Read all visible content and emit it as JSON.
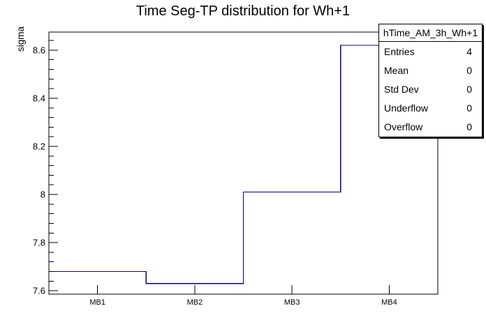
{
  "chart_data": {
    "type": "step-histogram",
    "title": "Time Seg-TP distribution for Wh+1",
    "ylabel": "sigma",
    "xlabel": "",
    "categories": [
      "MB1",
      "MB2",
      "MB3",
      "MB4"
    ],
    "values": [
      7.68,
      7.63,
      8.01,
      8.62
    ],
    "ylim": [
      7.586,
      8.675
    ],
    "y_major_ticks": [
      7.6,
      7.8,
      8.0,
      8.2,
      8.4,
      8.6
    ],
    "y_tick_labels": [
      "7.6",
      "7.8",
      "8",
      "8.2",
      "8.4",
      "8.6"
    ],
    "y_minor_step": 0.04,
    "line_color": "#00008c",
    "frame_color": "#000000",
    "background_color": "#ffffff",
    "grid": false,
    "legend_position": "top-right"
  },
  "stats_box": {
    "header": "hTime_AM_3h_Wh+1",
    "rows": [
      {
        "label": "Entries",
        "value": "4"
      },
      {
        "label": "Mean",
        "value": "0"
      },
      {
        "label": "Std Dev",
        "value": "0"
      },
      {
        "label": "Underflow",
        "value": "0"
      },
      {
        "label": "Overflow",
        "value": "0"
      }
    ]
  }
}
